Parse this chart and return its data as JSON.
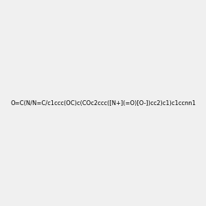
{
  "smiles": "O=C(N/N=C/c1ccc(OC)c(COc2ccc([N+](=O)[O-])cc2)c1)c1ccnn1",
  "image_size": 300,
  "background_color": "#f0f0f0",
  "title": "",
  "atom_colors": {
    "N": "#0000ff",
    "O": "#ff0000",
    "C": "#000000"
  }
}
